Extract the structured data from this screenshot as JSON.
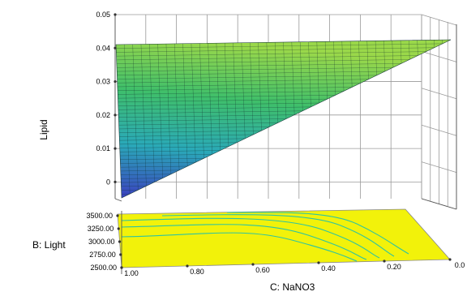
{
  "chart_data": {
    "type": "surface3d",
    "zlabel": "Lipid",
    "ylabel": "B: Light",
    "xlabel": "C: NaNO3",
    "z_ticks": [
      "0",
      "0.01",
      "0.02",
      "0.03",
      "0.04",
      "0.05"
    ],
    "z_tick_values": [
      0,
      0.01,
      0.02,
      0.03,
      0.04,
      0.05
    ],
    "zlim": [
      -0.005,
      0.05
    ],
    "y_ticks": [
      "2500.00",
      "2750.00",
      "3000.00",
      "3250.00",
      "3500.00"
    ],
    "y_tick_values": [
      2500,
      2750,
      3000,
      3250,
      3500
    ],
    "ylim": [
      2500,
      3500
    ],
    "x_ticks": [
      "1.00",
      "0.80",
      "0.60",
      "0.40",
      "0.20",
      "0.0"
    ],
    "x_tick_values": [
      1.0,
      0.8,
      0.6,
      0.4,
      0.2,
      0.0
    ],
    "xlim": [
      1.0,
      0.0
    ],
    "surface": {
      "description_points": [
        {
          "NaNO3": 1.0,
          "Light": 2500,
          "Lipid": -0.005
        },
        {
          "NaNO3": 1.0,
          "Light": 3500,
          "Lipid": 0.04
        },
        {
          "NaNO3": 0.0,
          "Light": 3500,
          "Lipid": 0.04
        },
        {
          "NaNO3": 0.0,
          "Light": 2500,
          "Lipid": 0.04
        }
      ],
      "colormap": [
        "#3b3fbf",
        "#2aa9b8",
        "#3fbf6a",
        "#9ad84a"
      ]
    },
    "contour_floor_color": "#f2f20a",
    "contour_line_color": "#2ec4a0",
    "grid": true
  }
}
